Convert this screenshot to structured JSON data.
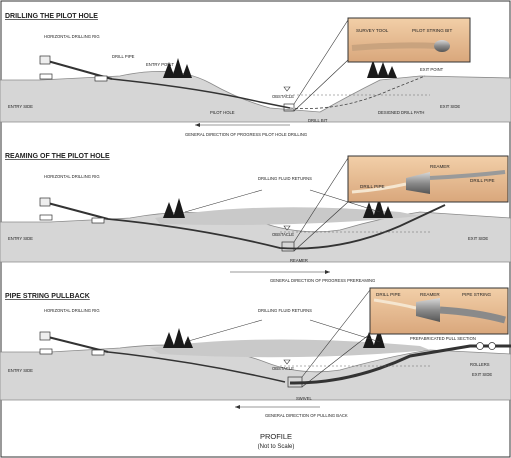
{
  "colors": {
    "ground": "#d6d6d6",
    "ground_edge": "#8a8a8a",
    "mound": "#c9c9c9",
    "pipe": "#333333",
    "inset_bg": "#e9b98f",
    "inset_border": "#333333",
    "tree": "#1a1a1a",
    "text": "#222222"
  },
  "panel1": {
    "title": "DRILLING THE PILOT HOLE",
    "rig": "HORIZONTAL DRILLING RIG",
    "drill_pipe": "DRILL PIPE",
    "entry_point": "ENTRY POINT",
    "exit_point": "EXIT POINT",
    "entry_side": "ENTRY SIDE",
    "exit_side": "EXIT SIDE",
    "obstacle": "OBSTACLE",
    "pilot_hole": "PILOT HOLE",
    "drill_bit": "DRILL BIT",
    "designed_path": "DESIGNED DRILL PATH",
    "direction": "GENERAL DIRECTION OF PROGRESS PILOT HOLE DRILLING",
    "inset_survey": "SURVEY TOOL",
    "inset_steering": "PILOT STRING BIT"
  },
  "panel2": {
    "title": "REAMING OF THE PILOT HOLE",
    "rig": "HORIZONTAL DRILLING RIG",
    "fluid": "DRILLING FLUID RETURNS",
    "entry_side": "ENTRY SIDE",
    "exit_side": "EXIT SIDE",
    "obstacle": "OBSTACLE",
    "reamer": "REAMER",
    "direction": "GENERAL DIRECTION OF PROGRESS PREREAMING",
    "inset_pipe": "DRILL PIPE",
    "inset_reamer": "REAMER",
    "inset_pipe2": "DRILL PIPE"
  },
  "panel3": {
    "title": "PIPE STRING PULLBACK",
    "rig": "HORIZONTAL DRILLING RIG",
    "fluid": "DRILLING FLUID RETURNS",
    "prefab": "PREFABRICATED PULL SECTION",
    "rollers": "ROLLERS",
    "entry_side": "ENTRY SIDE",
    "exit_side": "EXIT SIDE",
    "obstacle": "OBSTACLE",
    "swivel": "SWIVEL",
    "direction": "GENERAL DIRECTION OF PULLING BACK",
    "inset_pipe": "DRILL PIPE",
    "inset_reamer": "REAMER",
    "inset_string": "PIPE STRING"
  },
  "footer": {
    "title": "PROFILE",
    "subtitle": "(Not to Scale)"
  }
}
